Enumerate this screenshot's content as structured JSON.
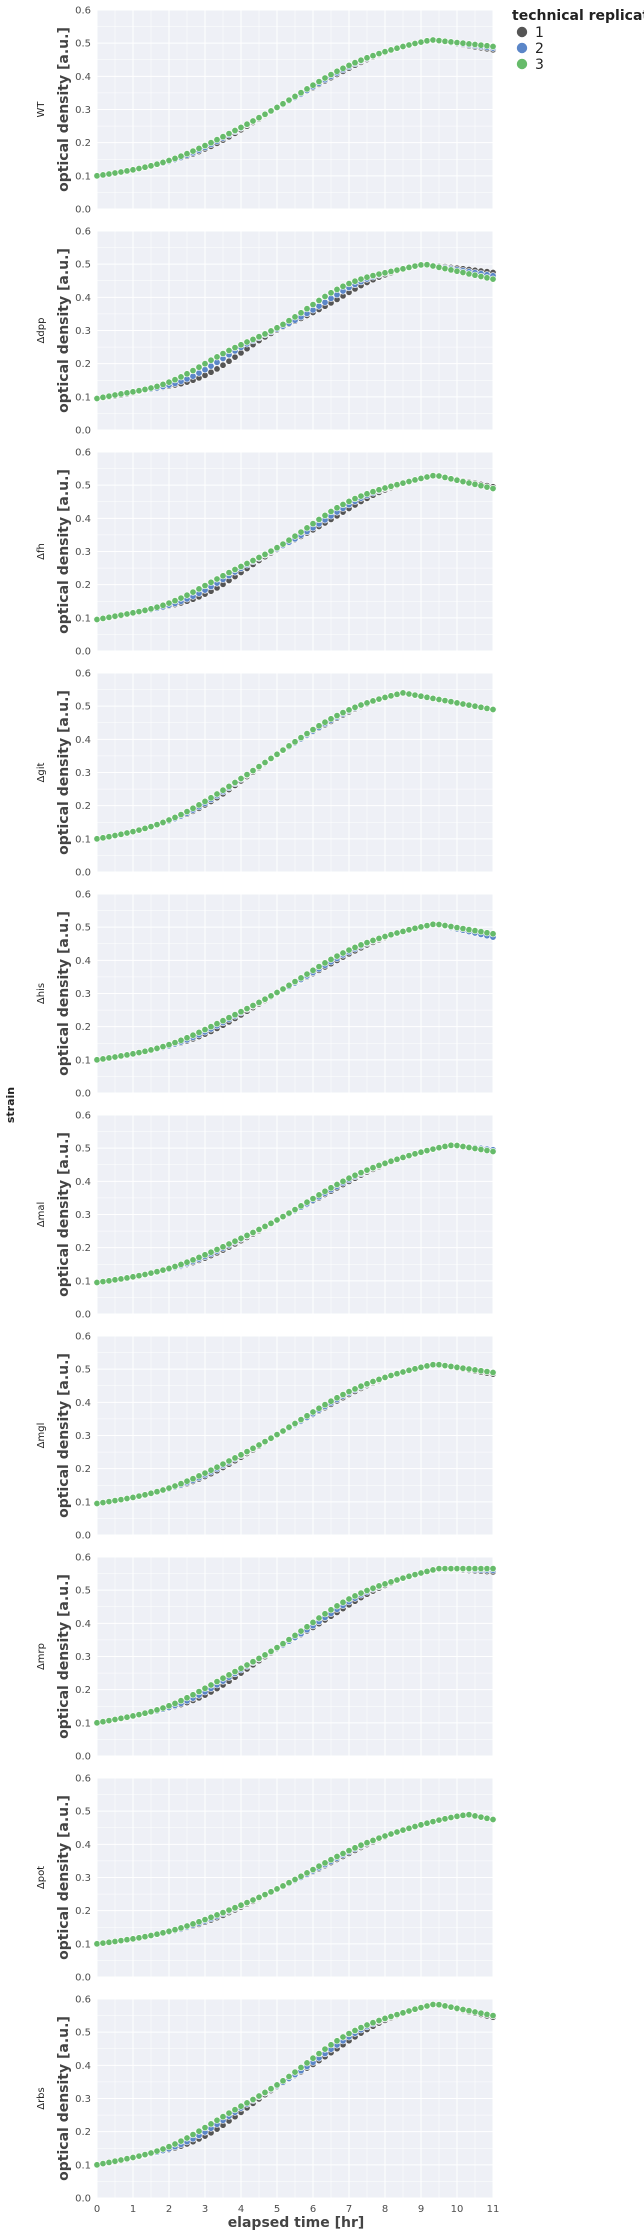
{
  "chart_data": {
    "type": "scatter",
    "facet_label": "strain",
    "xlabel": "elapsed time [hr]",
    "ylabel": "optical density [a.u.]",
    "xlim": [
      0,
      11
    ],
    "ylim": [
      0,
      0.6
    ],
    "x_ticks": [
      "0",
      "1",
      "2",
      "3",
      "4",
      "5",
      "6",
      "7",
      "8",
      "9",
      "10",
      "11"
    ],
    "y_ticks": [
      "0.0",
      "0.1",
      "0.2",
      "0.3",
      "0.4",
      "0.5",
      "0.6"
    ],
    "legend": {
      "title": "technical replicate",
      "placement": "top-right",
      "entries": [
        {
          "label": "1",
          "color": "#555555"
        },
        {
          "label": "2",
          "color": "#5b86c8"
        },
        {
          "label": "3",
          "color": "#66bb6a"
        }
      ]
    },
    "panel_background": "#eef0f6",
    "grid": true,
    "panels": [
      {
        "strain": "WT",
        "start": 0.1,
        "peak_x": 9.3,
        "peak": 0.51,
        "end": [
          0.48,
          0.485,
          0.49
        ],
        "spread": 0.006
      },
      {
        "strain": "Δdpp",
        "start": 0.095,
        "peak_x": 9.1,
        "peak": 0.5,
        "end": [
          0.475,
          0.465,
          0.455
        ],
        "spread": 0.02
      },
      {
        "strain": "Δfh",
        "start": 0.095,
        "peak_x": 9.4,
        "peak": 0.53,
        "end": [
          0.495,
          0.49,
          0.49
        ],
        "spread": 0.015
      },
      {
        "strain": "Δgit",
        "start": 0.1,
        "peak_x": 8.5,
        "peak": 0.54,
        "end": [
          0.49,
          0.49,
          0.49
        ],
        "spread": 0.006
      },
      {
        "strain": "Δhis",
        "start": 0.1,
        "peak_x": 9.4,
        "peak": 0.51,
        "end": [
          0.47,
          0.47,
          0.48
        ],
        "spread": 0.008
      },
      {
        "strain": "Δmal",
        "start": 0.095,
        "peak_x": 9.9,
        "peak": 0.51,
        "end": [
          0.495,
          0.495,
          0.49
        ],
        "spread": 0.006
      },
      {
        "strain": "Δmgl",
        "start": 0.095,
        "peak_x": 9.4,
        "peak": 0.515,
        "end": [
          0.485,
          0.49,
          0.49
        ],
        "spread": 0.006
      },
      {
        "strain": "Δmrp",
        "start": 0.1,
        "peak_x": 9.5,
        "peak": 0.565,
        "end": [
          0.555,
          0.56,
          0.565
        ],
        "spread": 0.012
      },
      {
        "strain": "Δpot",
        "start": 0.1,
        "peak_x": 10.3,
        "peak": 0.49,
        "end": [
          0.475,
          0.475,
          0.475
        ],
        "spread": 0.005
      },
      {
        "strain": "Δrbs",
        "start": 0.1,
        "peak_x": 9.4,
        "peak": 0.585,
        "end": [
          0.545,
          0.55,
          0.55
        ],
        "spread": 0.015
      }
    ]
  }
}
